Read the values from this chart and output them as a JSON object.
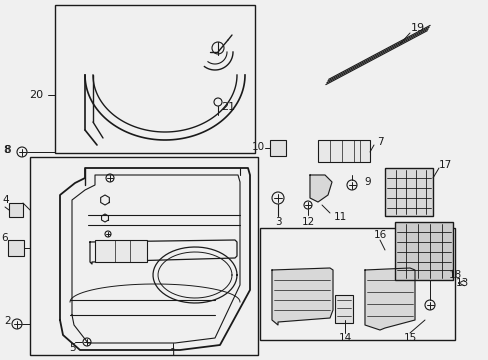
{
  "bg_color": "#f0f0f0",
  "fig_w": 4.89,
  "fig_h": 3.6,
  "dpi": 100,
  "lc": "#1a1a1a",
  "fs": 7.5
}
